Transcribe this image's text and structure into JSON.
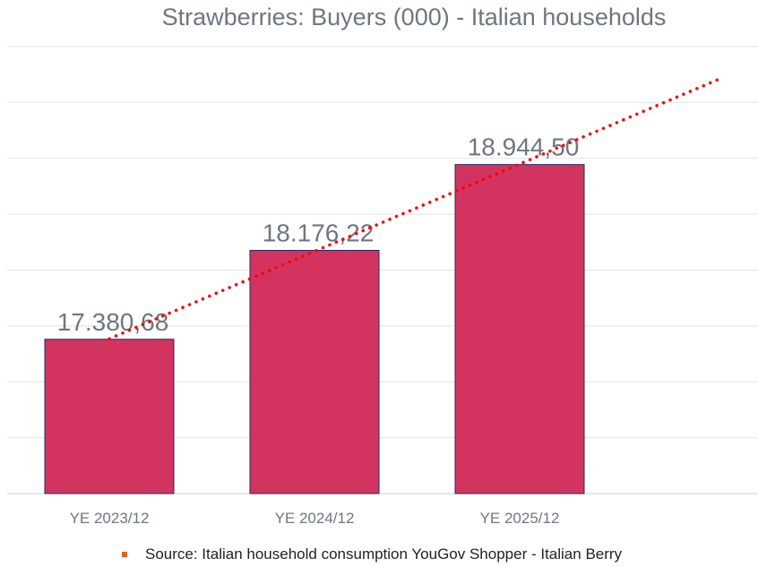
{
  "chart_data": {
    "type": "bar",
    "title": "Strawberries: Buyers (000) - Italian households",
    "categories": [
      "YE 2023/12",
      "YE 2024/12",
      "YE 2025/12"
    ],
    "values": [
      17380.68,
      18176.22,
      18944.5
    ],
    "data_labels": [
      "17.380,68",
      "18.176,22",
      "18.944,50"
    ],
    "xlabel": "",
    "ylabel": "",
    "ylim": [
      16000,
      20000
    ],
    "grid_step": 500,
    "grid": true,
    "trendline": {
      "type": "linear",
      "style": "dotted",
      "color": "#ff0000",
      "forward_periods": 1
    },
    "bar_color": "#d3345f",
    "bar_border": "#1f2a66",
    "legend": {
      "entries": [
        "Source: Italian household consumption YouGov Shopper - Italian Berry"
      ],
      "placement": "bottom",
      "color": "#e8601c"
    }
  }
}
